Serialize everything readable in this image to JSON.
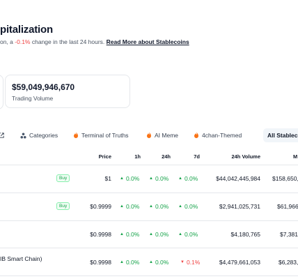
{
  "header": {
    "title": "pitalization",
    "subtitle_prefix": "on, a ",
    "subtitle_change": "-0.1%",
    "subtitle_suffix": " change in the last 24 hours. ",
    "read_more": "Read More about Stablecoins"
  },
  "stats": {
    "trading_volume_value": "$59,049,946,670",
    "trading_volume_label": "Trading Volume"
  },
  "tabs": [
    {
      "label": "",
      "icon": "external-link-icon"
    },
    {
      "label": "Categories",
      "icon": "categories-icon"
    },
    {
      "label": "Terminal of Truths",
      "icon": "fire-icon"
    },
    {
      "label": "AI Meme",
      "icon": "fire-icon"
    },
    {
      "label": "4chan-Themed",
      "icon": "fire-icon"
    },
    {
      "label": "All Stablecoi",
      "icon": ""
    }
  ],
  "table": {
    "headers": {
      "price": "Price",
      "h1": "1h",
      "h24": "24h",
      "d7": "7d",
      "volume": "24h Volume",
      "mcap": "M"
    },
    "rows": [
      {
        "name": "",
        "buy": "Buy",
        "price": "$1",
        "h1": "0.0%",
        "h24": "0.0%",
        "d7": "0.0%",
        "volume": "$44,042,445,984",
        "mcap": "$158,650,"
      },
      {
        "name": "",
        "buy": "Buy",
        "price": "$0.9999",
        "h1": "0.0%",
        "h24": "0.0%",
        "d7": "0.0%",
        "volume": "$2,941,025,731",
        "mcap": "$61,966"
      },
      {
        "name": "",
        "buy": "",
        "price": "$0.9998",
        "h1": "0.0%",
        "h24": "0.0%",
        "d7": "0.0%",
        "volume": "$4,180,765",
        "mcap": "$7,381,"
      },
      {
        "name": "IB Smart Chain)",
        "buy": "",
        "price": "$0.9998",
        "h1": "0.0%",
        "h24": "0.0%",
        "d7": "0.1%",
        "volume": "$4,479,661,053",
        "mcap": "$6,283,"
      }
    ]
  },
  "colors": {
    "positive": "#16a34a",
    "negative": "#ef4444",
    "border": "#e5e7eb"
  }
}
